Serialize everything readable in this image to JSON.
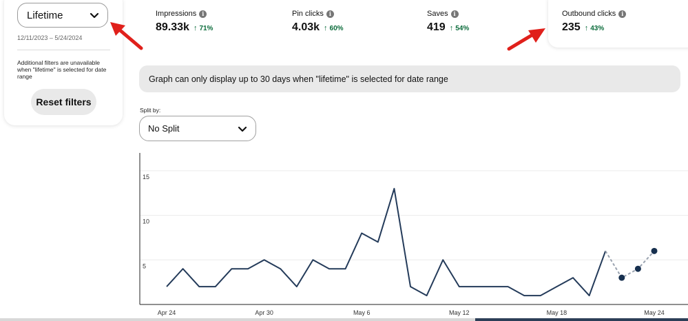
{
  "filters": {
    "date_select": "Lifetime",
    "date_range": "12/11/2023 – 5/24/2024",
    "note": "Additional filters are unavailable when \"lifetime\" is selected for date range",
    "reset_label": "Reset filters"
  },
  "metrics": [
    {
      "label": "Impressions",
      "value": "89.33k",
      "change": "71%"
    },
    {
      "label": "Pin clicks",
      "value": "4.03k",
      "change": "60%"
    },
    {
      "label": "Saves",
      "value": "419",
      "change": "54%"
    },
    {
      "label": "Outbound clicks",
      "value": "235",
      "change": "43%"
    }
  ],
  "notice": "Graph can only display up to 30 days when \"lifetime\" is selected for date range",
  "split": {
    "label": "Split by:",
    "value": "No Split"
  },
  "colors": {
    "line": "#243b5a",
    "dashed": "#9aa3b0",
    "positive": "#0a6b3a",
    "annotation_arrow": "#e0201b"
  },
  "icons": {
    "info": "info-icon",
    "dropdown": "chevron-down-icon",
    "up": "arrow-up-icon"
  },
  "chart_data": {
    "type": "line",
    "x": [
      "Apr 24",
      "Apr 25",
      "Apr 26",
      "Apr 27",
      "Apr 28",
      "Apr 29",
      "Apr 30",
      "May 1",
      "May 2",
      "May 3",
      "May 4",
      "May 5",
      "May 6",
      "May 7",
      "May 8",
      "May 9",
      "May 10",
      "May 11",
      "May 12",
      "May 13",
      "May 14",
      "May 15",
      "May 16",
      "May 17",
      "May 18",
      "May 19",
      "May 20",
      "May 21",
      "May 22",
      "May 23",
      "May 24"
    ],
    "x_tick_labels": [
      "Apr 24",
      "Apr 30",
      "May 6",
      "May 12",
      "May 18",
      "May 24"
    ],
    "series": [
      {
        "values": [
          2,
          4,
          2,
          2,
          4,
          4,
          5,
          4,
          2,
          5,
          4,
          4,
          8,
          7,
          13,
          2,
          1,
          5,
          2,
          2,
          2,
          2,
          1,
          1,
          2,
          3,
          1,
          6,
          null,
          null,
          null
        ]
      },
      {
        "values": [
          null,
          null,
          null,
          null,
          null,
          null,
          null,
          null,
          null,
          null,
          null,
          null,
          null,
          null,
          null,
          null,
          null,
          null,
          null,
          null,
          null,
          null,
          null,
          null,
          null,
          null,
          null,
          6,
          3,
          4,
          6
        ]
      }
    ],
    "y_ticks": [
      5,
      10,
      15
    ],
    "ylim": [
      0,
      17
    ],
    "grid": true
  }
}
